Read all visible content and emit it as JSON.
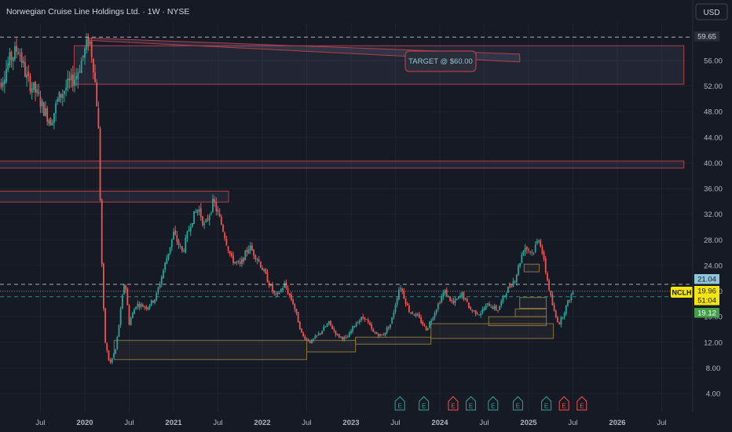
{
  "header": {
    "symbol_title": "Norwegian Cruise Line Holdings Ltd. · 1W · NYSE",
    "currency_button": "USD"
  },
  "colors": {
    "background": "#161a25",
    "up": "#26a69a",
    "down": "#ef5350",
    "zone_red": "#b2404a",
    "zone_brown": "#8a7439",
    "text": "#b2b5be"
  },
  "chart_data": {
    "type": "candlestick",
    "ylim": [
      2,
      63
    ],
    "y_ticks": [
      4,
      8,
      12,
      16,
      20,
      24,
      28,
      32,
      36,
      40,
      44,
      48,
      52,
      56
    ],
    "x_ticks": [
      {
        "label": "Jul",
        "t": 2019.5
      },
      {
        "label": "2020",
        "t": 2020.0
      },
      {
        "label": "Jul",
        "t": 2020.5
      },
      {
        "label": "2021",
        "t": 2021.0
      },
      {
        "label": "Jul",
        "t": 2021.5
      },
      {
        "label": "2022",
        "t": 2022.0
      },
      {
        "label": "Jul",
        "t": 2022.5
      },
      {
        "label": "2023",
        "t": 2023.0
      },
      {
        "label": "Jul",
        "t": 2023.5
      },
      {
        "label": "2024",
        "t": 2024.0
      },
      {
        "label": "Jul",
        "t": 2024.5
      },
      {
        "label": "2025",
        "t": 2025.0
      },
      {
        "label": "Jul",
        "t": 2025.5
      },
      {
        "label": "2026",
        "t": 2026.0
      },
      {
        "label": "Jul",
        "t": 2026.5
      }
    ],
    "price_path": [
      [
        2019.05,
        52.5
      ],
      [
        2019.15,
        56
      ],
      [
        2019.25,
        58
      ],
      [
        2019.35,
        53
      ],
      [
        2019.45,
        51
      ],
      [
        2019.55,
        48
      ],
      [
        2019.62,
        46.5
      ],
      [
        2019.7,
        50
      ],
      [
        2019.8,
        52
      ],
      [
        2019.9,
        53.5
      ],
      [
        2020.0,
        57.5
      ],
      [
        2020.05,
        59.5
      ],
      [
        2020.1,
        55
      ],
      [
        2020.15,
        47
      ],
      [
        2020.2,
        20
      ],
      [
        2020.23,
        12
      ],
      [
        2020.28,
        8.5
      ],
      [
        2020.35,
        11
      ],
      [
        2020.45,
        22
      ],
      [
        2020.5,
        15
      ],
      [
        2020.58,
        18
      ],
      [
        2020.7,
        17.5
      ],
      [
        2020.8,
        19
      ],
      [
        2020.9,
        24
      ],
      [
        2021.0,
        29
      ],
      [
        2021.1,
        26
      ],
      [
        2021.2,
        31
      ],
      [
        2021.28,
        33
      ],
      [
        2021.35,
        30
      ],
      [
        2021.45,
        34
      ],
      [
        2021.55,
        30
      ],
      [
        2021.65,
        25
      ],
      [
        2021.75,
        24
      ],
      [
        2021.85,
        27
      ],
      [
        2021.95,
        25
      ],
      [
        2022.05,
        22
      ],
      [
        2022.15,
        19
      ],
      [
        2022.25,
        21
      ],
      [
        2022.35,
        18
      ],
      [
        2022.45,
        13
      ],
      [
        2022.55,
        12
      ],
      [
        2022.65,
        13.5
      ],
      [
        2022.75,
        15
      ],
      [
        2022.85,
        13
      ],
      [
        2022.95,
        12.5
      ],
      [
        2023.05,
        15
      ],
      [
        2023.15,
        16
      ],
      [
        2023.25,
        13.5
      ],
      [
        2023.35,
        13
      ],
      [
        2023.45,
        15
      ],
      [
        2023.55,
        21
      ],
      [
        2023.65,
        17
      ],
      [
        2023.75,
        16
      ],
      [
        2023.85,
        14
      ],
      [
        2023.95,
        17
      ],
      [
        2024.05,
        20
      ],
      [
        2024.15,
        18
      ],
      [
        2024.25,
        19.5
      ],
      [
        2024.35,
        17
      ],
      [
        2024.45,
        16.5
      ],
      [
        2024.55,
        18
      ],
      [
        2024.65,
        17
      ],
      [
        2024.75,
        20
      ],
      [
        2024.85,
        22
      ],
      [
        2024.95,
        27
      ],
      [
        2025.05,
        26
      ],
      [
        2025.12,
        28.5
      ],
      [
        2025.18,
        24
      ],
      [
        2025.25,
        19
      ],
      [
        2025.3,
        16
      ],
      [
        2025.35,
        15
      ],
      [
        2025.42,
        17.5
      ],
      [
        2025.5,
        19.96
      ]
    ],
    "zones": [
      {
        "t1": 2019.88,
        "t2": 2026.75,
        "p1": 52.3,
        "p2": 58.3,
        "color": "red"
      },
      {
        "t1": 2019.0,
        "t2": 2026.75,
        "p1": 39.2,
        "p2": 40.3,
        "color": "red"
      },
      {
        "t1": 2019.0,
        "t2": 2021.62,
        "p1": 33.9,
        "p2": 35.6,
        "color": "red"
      },
      {
        "t1": 2020.33,
        "t2": 2022.5,
        "p1": 9.3,
        "p2": 12.3,
        "color": "brown"
      },
      {
        "t1": 2022.5,
        "t2": 2023.05,
        "p1": 10.5,
        "p2": 12.3,
        "color": "brown"
      },
      {
        "t1": 2023.05,
        "t2": 2023.9,
        "p1": 11.7,
        "p2": 12.8,
        "color": "brown"
      },
      {
        "t1": 2023.9,
        "t2": 2025.28,
        "p1": 12.6,
        "p2": 14.9,
        "color": "brown"
      },
      {
        "t1": 2024.55,
        "t2": 2025.2,
        "p1": 14.6,
        "p2": 16.0,
        "color": "brown"
      },
      {
        "t1": 2024.85,
        "t2": 2025.2,
        "p1": 16.0,
        "p2": 17.2,
        "color": "brown"
      },
      {
        "t1": 2024.9,
        "t2": 2025.2,
        "p1": 17.3,
        "p2": 19.0,
        "color": "brown"
      },
      {
        "t1": 2024.95,
        "t2": 2025.12,
        "p1": 23.0,
        "p2": 24.2,
        "color": "brown"
      }
    ],
    "target_line": {
      "t1": 2020.05,
      "p1": 59.5,
      "t2": 2024.9,
      "p2": 57.0
    },
    "annotation": {
      "text": "TARGET @ $60.00",
      "t": 2024.0,
      "p": 56.0
    },
    "dashed_levels": [
      {
        "p": 59.65,
        "color": "#d1d4dc"
      },
      {
        "p": 21.04,
        "color": "#d1d4dc"
      },
      {
        "p": 19.96,
        "color": "#9598a1",
        "dotted": true
      },
      {
        "p": 19.12,
        "color": "#26a69a"
      }
    ],
    "price_labels": [
      {
        "text": "59.65",
        "p": 59.65,
        "bg": "#2a2e39",
        "fg": "#d1d4dc"
      },
      {
        "text": "21.04",
        "p": 21.04,
        "bg": "#8ec7dc",
        "fg": "#131722"
      },
      {
        "text": "19.96",
        "p": 19.96,
        "bg": "#f5e50b",
        "fg": "#131722"
      },
      {
        "text": "51:04",
        "p": 18.75,
        "bg": "#f5e50b",
        "fg": "#131722"
      },
      {
        "text": "19.12",
        "p": 17.3,
        "bg": "#43a047",
        "fg": "#ffffff"
      }
    ],
    "ticker_label": "NCLH",
    "earnings": [
      {
        "label": "E",
        "t": 2023.55,
        "type": "up"
      },
      {
        "label": "E",
        "t": 2023.82,
        "type": "up"
      },
      {
        "label": "E",
        "t": 2024.15,
        "type": "down"
      },
      {
        "label": "E",
        "t": 2024.35,
        "type": "up"
      },
      {
        "label": "E",
        "t": 2024.6,
        "type": "up"
      },
      {
        "label": "E",
        "t": 2024.88,
        "type": "up"
      },
      {
        "label": "E",
        "t": 2025.2,
        "type": "up"
      },
      {
        "label": "E",
        "t": 2025.4,
        "type": "down"
      },
      {
        "label": "E",
        "t": 2025.6,
        "type": "down"
      }
    ]
  }
}
